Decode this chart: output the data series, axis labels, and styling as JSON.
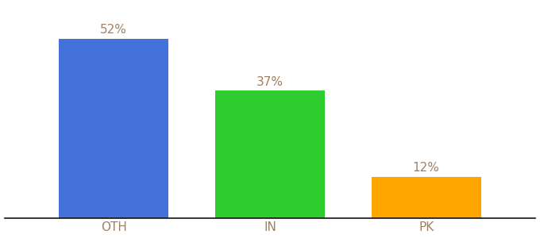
{
  "categories": [
    "OTH",
    "IN",
    "PK"
  ],
  "values": [
    52,
    37,
    12
  ],
  "bar_colors": [
    "#4472db",
    "#2ecc2e",
    "#FFA500"
  ],
  "value_labels": [
    "52%",
    "37%",
    "12%"
  ],
  "label_color": "#a08060",
  "tick_color": "#a08060",
  "background_color": "#ffffff",
  "ylim": [
    0,
    62
  ],
  "bar_width": 0.7,
  "tick_fontsize": 11,
  "label_fontsize": 11,
  "figsize": [
    6.8,
    3.0
  ],
  "dpi": 100
}
